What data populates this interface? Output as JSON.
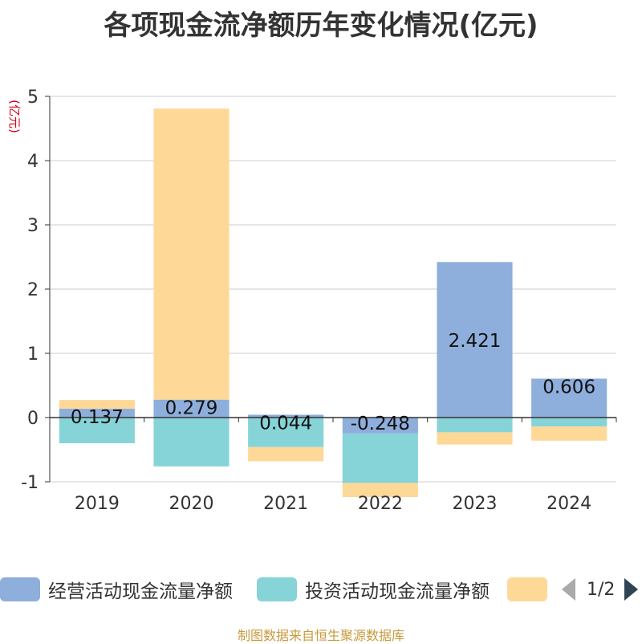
{
  "title": "各项现金流净额历年变化情况(亿元)",
  "footer": "制图数据来自恒生聚源数据库",
  "legend_pager": "1/2",
  "chart_data": {
    "type": "bar",
    "stacked": true,
    "title": "各项现金流净额历年变化情况(亿元)",
    "ylabel": "(亿元)",
    "categories": [
      "2019",
      "2020",
      "2021",
      "2022",
      "2023",
      "2024"
    ],
    "ylim": [
      -1,
      5
    ],
    "yticks": [
      -1,
      0,
      1,
      2,
      3,
      4,
      5
    ],
    "grid": true,
    "legend_position": "bottom",
    "series": [
      {
        "name": "经营活动现金流量净额",
        "color": "#8eaedc",
        "values": [
          0.137,
          0.279,
          0.044,
          -0.248,
          2.421,
          0.606
        ],
        "labels": [
          "0.137",
          "0.279",
          "0.044",
          "-0.248",
          "2.421",
          "0.606"
        ]
      },
      {
        "name": "投资活动现金流量净额",
        "color": "#86d4d8",
        "values": [
          -0.4,
          -0.76,
          -0.46,
          -0.77,
          -0.23,
          -0.14
        ]
      },
      {
        "name": "",
        "color": "#fed897",
        "values": [
          0.137,
          4.53,
          -0.22,
          -0.22,
          -0.19,
          -0.22
        ]
      }
    ]
  }
}
